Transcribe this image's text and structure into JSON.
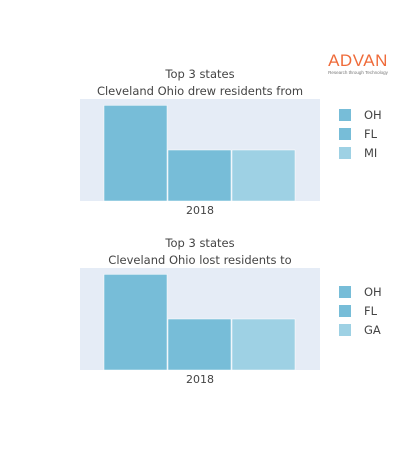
{
  "brand": {
    "name": "ADVAN",
    "tagline": "Research through Technology",
    "color": "#ef6b3a"
  },
  "plot_background": "#e5ecf6",
  "chart_data": [
    {
      "type": "bar",
      "title_lines": [
        "Top 3 states",
        "Cleveland Ohio drew residents from"
      ],
      "categories": [
        "2018"
      ],
      "series": [
        {
          "name": "OH",
          "values": [
            3.0
          ],
          "color": "#77bdd8"
        },
        {
          "name": "FL",
          "values": [
            1.6
          ],
          "color": "#77bdd8"
        },
        {
          "name": "MI",
          "values": [
            1.6
          ],
          "color": "#9ed1e4"
        }
      ],
      "ylim": [
        0,
        3.2
      ],
      "legend": "right"
    },
    {
      "type": "bar",
      "title_lines": [
        "Top 3 states",
        "Cleveland Ohio lost residents to"
      ],
      "categories": [
        "2018"
      ],
      "series": [
        {
          "name": "OH",
          "values": [
            3.0
          ],
          "color": "#77bdd8"
        },
        {
          "name": "FL",
          "values": [
            1.6
          ],
          "color": "#77bdd8"
        },
        {
          "name": "GA",
          "values": [
            1.6
          ],
          "color": "#9ed1e4"
        }
      ],
      "ylim": [
        0,
        3.2
      ],
      "legend": "right"
    }
  ]
}
